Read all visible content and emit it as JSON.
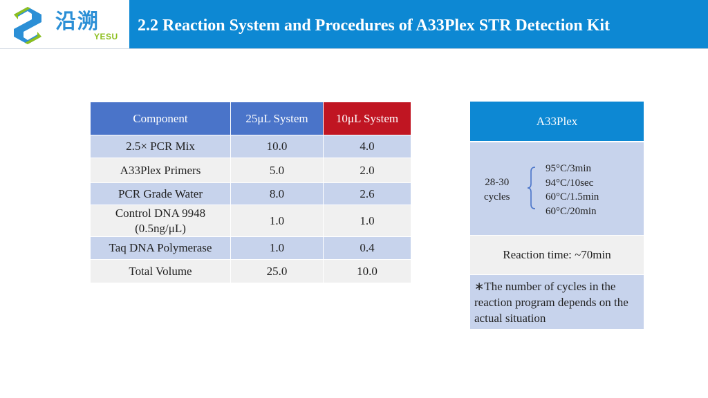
{
  "logo": {
    "cn": "沿溯",
    "en": "YESU"
  },
  "header": {
    "title": "2.2 Reaction System and Procedures of A33Plex STR Detection Kit"
  },
  "table": {
    "headers": [
      "Component",
      "25μL System",
      "10μL System"
    ],
    "rows": [
      {
        "component": "2.5× PCR Mix",
        "v25": "10.0",
        "v10": "4.0"
      },
      {
        "component": "A33Plex Primers",
        "v25": "5.0",
        "v10": "2.0"
      },
      {
        "component": "PCR Grade Water",
        "v25": "8.0",
        "v10": "2.6"
      },
      {
        "component_line1": "Control DNA 9948",
        "component_line2": "(0.5ng/μL)",
        "v25": "1.0",
        "v10": "1.0"
      },
      {
        "component": "Taq DNA Polymerase",
        "v25": "1.0",
        "v10": "0.4"
      },
      {
        "component": "Total Volume",
        "v25": "25.0",
        "v10": "10.0"
      }
    ]
  },
  "panel": {
    "title": "A33Plex",
    "cycles_line1": "28-30",
    "cycles_line2": "cycles",
    "steps": [
      "95°C/3min",
      "94°C/10sec",
      "60°C/1.5min",
      "60°C/20min"
    ],
    "reaction_time": "Reaction time: ~70min",
    "note": "∗The number of cycles in the reaction program depends on the actual situation"
  },
  "colors": {
    "header_blue": "#0d88d3",
    "table_blue": "#4a74c9",
    "table_red": "#c01522",
    "row_light_blue": "#c7d3ec",
    "row_gray": "#f0f0f0",
    "logo_blue": "#2b8fd6",
    "logo_green": "#8dbf1f"
  }
}
